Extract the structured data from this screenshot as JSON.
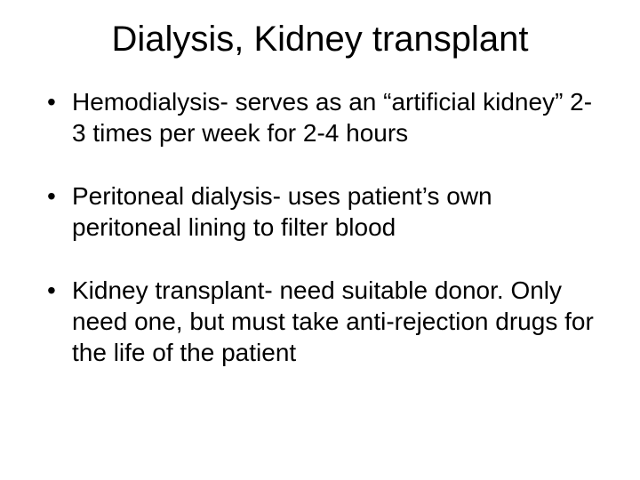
{
  "slide": {
    "title": "Dialysis, Kidney transplant",
    "title_fontsize": 40,
    "title_color": "#000000",
    "title_align": "center",
    "background_color": "#ffffff",
    "text_color": "#000000",
    "body_fontsize": 28,
    "font_family": "Arial",
    "bullets": [
      "Hemodialysis- serves as an “artificial kidney” 2-3 times per week for 2-4 hours",
      "Peritoneal dialysis- uses patient’s own peritoneal lining to filter blood",
      "Kidney transplant- need suitable donor. Only need one, but must take anti-rejection drugs for the life of the patient"
    ]
  }
}
